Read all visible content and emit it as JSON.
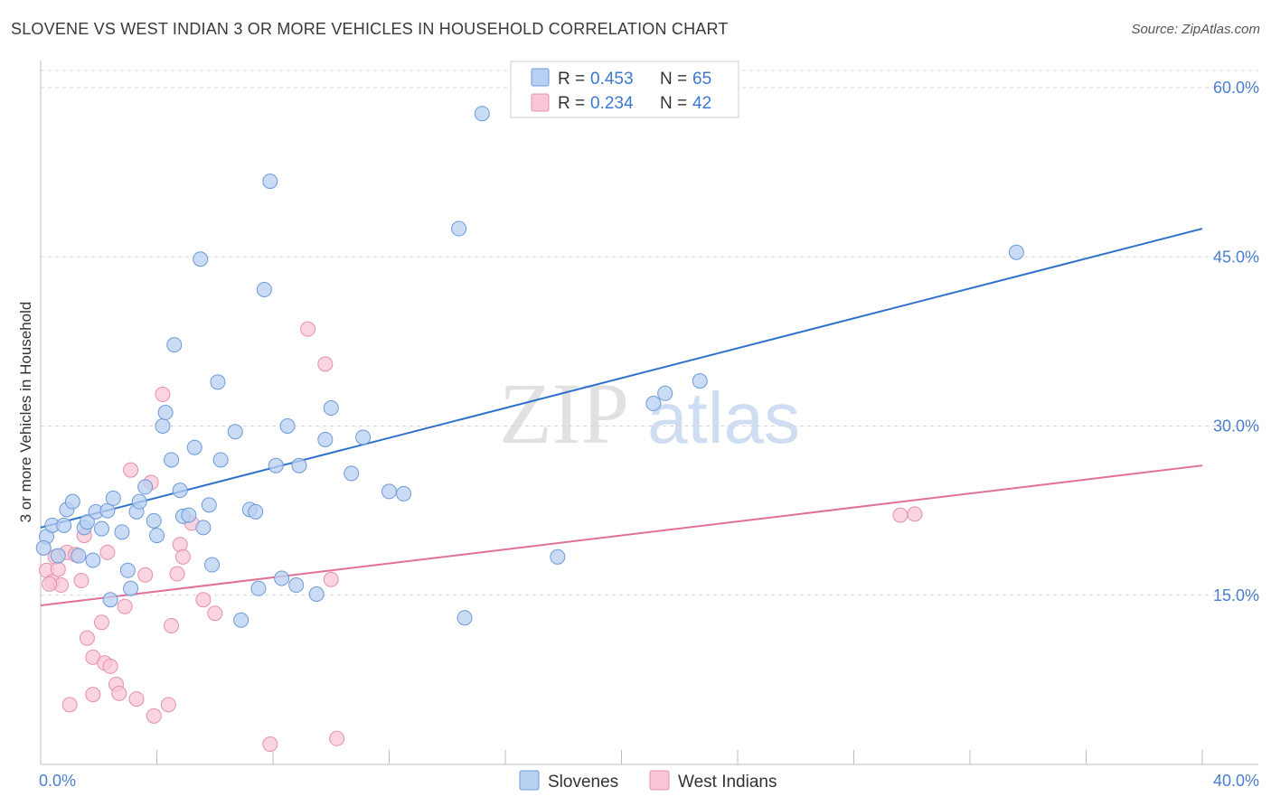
{
  "title": "SLOVENE VS WEST INDIAN 3 OR MORE VEHICLES IN HOUSEHOLD CORRELATION CHART",
  "source": "Source: ZipAtlas.com",
  "watermark": {
    "part1": "ZIP",
    "part2": "atlas"
  },
  "colors": {
    "slovenes_fill": "#b8d0f2",
    "slovenes_stroke": "#6c9ad8",
    "slovenes_line": "#2f72cc",
    "westindians_fill": "#f8c6d4",
    "westindians_stroke": "#e690ab",
    "westindians_line": "#e0709a",
    "tick_text": "#4a7fd0",
    "grid": "#d8d8d8"
  },
  "legend": {
    "rows": [
      {
        "r_label": "R = ",
        "r_value": "0.453",
        "n_label": "N = ",
        "n_value": "65"
      },
      {
        "r_label": "R = ",
        "r_value": "0.234",
        "n_label": "N = ",
        "n_value": "42"
      }
    ]
  },
  "bottom_legend": {
    "series1": "Slovenes",
    "series2": "West Indians"
  },
  "chart_data": {
    "type": "scatter",
    "title": "SLOVENE VS WEST INDIAN 3 OR MORE VEHICLES IN HOUSEHOLD CORRELATION CHART",
    "xlabel": "",
    "ylabel": "3 or more Vehicles in Household",
    "xlim": [
      0,
      40
    ],
    "ylim": [
      0,
      60
    ],
    "x_tick_labels": [
      {
        "value": 0,
        "label": "0.0%"
      },
      {
        "value": 40,
        "label": "40.0%"
      }
    ],
    "y_tick_labels": [
      {
        "value": 15,
        "label": "15.0%"
      },
      {
        "value": 30,
        "label": "30.0%"
      },
      {
        "value": 45,
        "label": "45.0%"
      },
      {
        "value": 60,
        "label": "60.0%"
      }
    ],
    "series": [
      {
        "name": "Slovenes",
        "R": 0.453,
        "N": 65,
        "trend": {
          "x": [
            0,
            40
          ],
          "y": [
            21.0,
            47.5
          ]
        },
        "points": [
          [
            0.2,
            20.2
          ],
          [
            0.4,
            21.2
          ],
          [
            0.6,
            18.5
          ],
          [
            0.8,
            21.2
          ],
          [
            0.9,
            22.6
          ],
          [
            1.1,
            23.3
          ],
          [
            1.3,
            18.5
          ],
          [
            1.5,
            21.0
          ],
          [
            1.6,
            21.5
          ],
          [
            1.8,
            18.1
          ],
          [
            1.9,
            22.4
          ],
          [
            2.1,
            20.9
          ],
          [
            2.3,
            22.5
          ],
          [
            2.5,
            23.6
          ],
          [
            2.8,
            20.6
          ],
          [
            3.0,
            17.2
          ],
          [
            3.1,
            15.6
          ],
          [
            3.3,
            22.4
          ],
          [
            3.4,
            23.3
          ],
          [
            3.6,
            24.6
          ],
          [
            3.9,
            21.6
          ],
          [
            4.0,
            20.3
          ],
          [
            4.2,
            30.0
          ],
          [
            4.3,
            31.2
          ],
          [
            4.5,
            27.0
          ],
          [
            4.6,
            37.2
          ],
          [
            4.8,
            24.3
          ],
          [
            4.9,
            22.0
          ],
          [
            5.1,
            22.1
          ],
          [
            5.3,
            28.1
          ],
          [
            5.5,
            44.8
          ],
          [
            5.6,
            21.0
          ],
          [
            5.8,
            23.0
          ],
          [
            5.9,
            17.7
          ],
          [
            6.1,
            33.9
          ],
          [
            6.2,
            27.0
          ],
          [
            6.7,
            29.5
          ],
          [
            6.9,
            12.8
          ],
          [
            7.2,
            22.6
          ],
          [
            7.4,
            22.4
          ],
          [
            7.5,
            15.6
          ],
          [
            7.7,
            42.1
          ],
          [
            7.9,
            51.7
          ],
          [
            8.1,
            26.5
          ],
          [
            8.3,
            16.5
          ],
          [
            8.5,
            30.0
          ],
          [
            8.8,
            15.9
          ],
          [
            8.9,
            26.5
          ],
          [
            9.5,
            15.1
          ],
          [
            9.8,
            28.8
          ],
          [
            10.0,
            31.6
          ],
          [
            10.7,
            25.8
          ],
          [
            11.1,
            29.0
          ],
          [
            12.0,
            24.2
          ],
          [
            12.5,
            24.0
          ],
          [
            14.4,
            47.5
          ],
          [
            14.6,
            13.0
          ],
          [
            15.2,
            57.7
          ],
          [
            17.8,
            18.4
          ],
          [
            21.1,
            32.0
          ],
          [
            21.5,
            32.9
          ],
          [
            22.7,
            34.0
          ],
          [
            33.6,
            45.4
          ],
          [
            0.1,
            19.2
          ],
          [
            2.4,
            14.6
          ]
        ]
      },
      {
        "name": "West Indians",
        "R": 0.234,
        "N": 42,
        "trend": {
          "x": [
            0,
            40
          ],
          "y": [
            14.1,
            26.5
          ]
        },
        "points": [
          [
            0.2,
            17.2
          ],
          [
            0.4,
            16.2
          ],
          [
            0.5,
            18.4
          ],
          [
            0.6,
            17.3
          ],
          [
            0.7,
            15.9
          ],
          [
            0.9,
            18.8
          ],
          [
            1.0,
            5.3
          ],
          [
            1.2,
            18.6
          ],
          [
            1.4,
            16.3
          ],
          [
            1.5,
            20.3
          ],
          [
            1.6,
            11.2
          ],
          [
            1.8,
            6.2
          ],
          [
            1.8,
            9.5
          ],
          [
            2.1,
            12.6
          ],
          [
            2.2,
            9.0
          ],
          [
            2.3,
            18.8
          ],
          [
            2.4,
            8.7
          ],
          [
            2.6,
            7.1
          ],
          [
            2.7,
            6.3
          ],
          [
            2.9,
            14.0
          ],
          [
            3.1,
            26.1
          ],
          [
            3.3,
            5.8
          ],
          [
            3.6,
            16.8
          ],
          [
            3.8,
            25.0
          ],
          [
            3.9,
            4.3
          ],
          [
            4.2,
            32.8
          ],
          [
            4.4,
            5.3
          ],
          [
            4.5,
            12.3
          ],
          [
            4.7,
            16.9
          ],
          [
            4.8,
            19.5
          ],
          [
            4.9,
            18.4
          ],
          [
            5.2,
            21.4
          ],
          [
            5.6,
            14.6
          ],
          [
            6.0,
            13.4
          ],
          [
            7.9,
            1.8
          ],
          [
            9.2,
            38.6
          ],
          [
            9.8,
            35.5
          ],
          [
            10.0,
            16.4
          ],
          [
            10.2,
            2.3
          ],
          [
            29.6,
            22.1
          ],
          [
            30.1,
            22.2
          ],
          [
            0.3,
            16.0
          ]
        ]
      }
    ]
  }
}
